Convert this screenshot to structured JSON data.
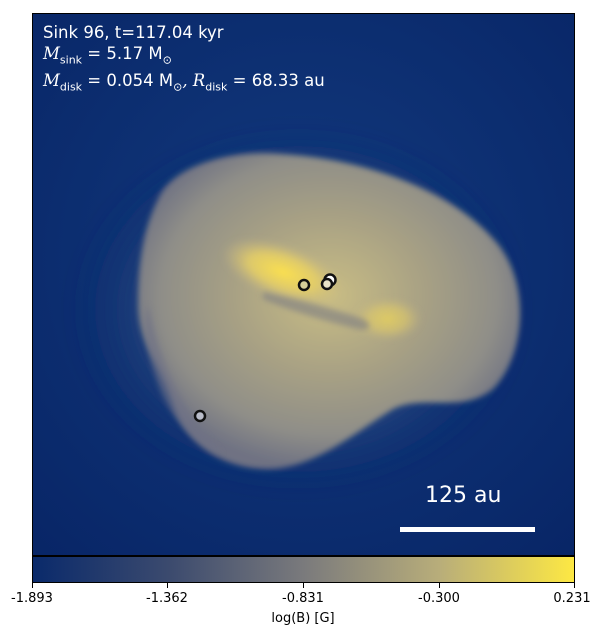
{
  "header": {
    "line1": "Sink 96, t=117.04 kyr",
    "msink_symbol": "M",
    "msink_sub": "sink",
    "msink_value": " = 5.17 M",
    "msink_unit_sub": "⊙",
    "mdisk_symbol": "M",
    "mdisk_sub": "disk",
    "mdisk_value": " = 0.054 M",
    "mdisk_unit_sub": "⊙",
    "rdisk_symbol": ", R",
    "rdisk_sub": "disk",
    "rdisk_value": " = 68.33 au"
  },
  "scalebar": {
    "label": "125 au"
  },
  "colorbar": {
    "label": "log(B) [G]",
    "ticks": [
      "-1.893",
      "-1.362",
      "-0.831",
      "-0.300",
      "0.231"
    ],
    "colors": [
      "#0a2a6b",
      "#3b4a6e",
      "#7a7a7c",
      "#b8ad7a",
      "#fde843"
    ]
  },
  "sinks": [
    {
      "name": "sink-primary"
    },
    {
      "name": "sink-secondary"
    },
    {
      "name": "sink-companion"
    },
    {
      "name": "sink-distant"
    }
  ]
}
